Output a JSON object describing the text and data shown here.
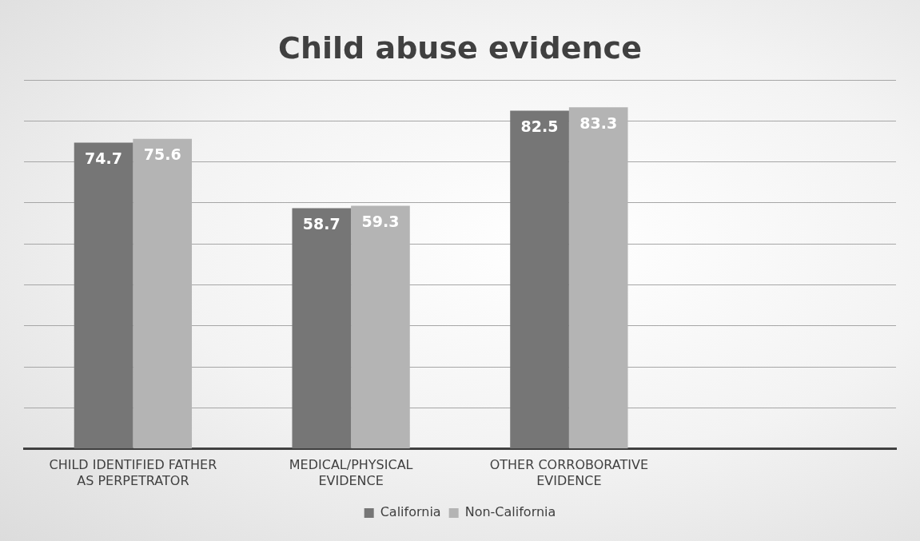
{
  "chart_data": {
    "type": "bar",
    "title": "Child abuse evidence",
    "categories": [
      "CHILD IDENTIFIED FATHER AS PERPETRATOR",
      "MEDICAL/PHYSICAL EVIDENCE",
      "OTHER CORROBORATIVE EVIDENCE",
      null
    ],
    "series": [
      {
        "name": "California",
        "color": "#767676",
        "values": [
          74.7,
          58.7,
          82.5,
          null
        ]
      },
      {
        "name": "Non-California",
        "color": "#b4b4b4",
        "values": [
          75.6,
          59.3,
          83.3,
          null
        ]
      }
    ],
    "ylim": [
      0,
      90
    ],
    "yticks": [
      {
        "value": 0,
        "label": null
      },
      {
        "value": 10,
        "label": null
      },
      {
        "value": 20,
        "label": null
      },
      {
        "value": 30,
        "label": null
      },
      {
        "value": 40,
        "label": null
      },
      {
        "value": 50,
        "label": null
      },
      {
        "value": 60,
        "label": null
      },
      {
        "value": 70,
        "label": null
      },
      {
        "value": 80,
        "label": null
      },
      {
        "value": 90,
        "label": null
      }
    ],
    "tick_labels": "x",
    "grid": "y",
    "legend": "bottom",
    "data_labels": true
  }
}
